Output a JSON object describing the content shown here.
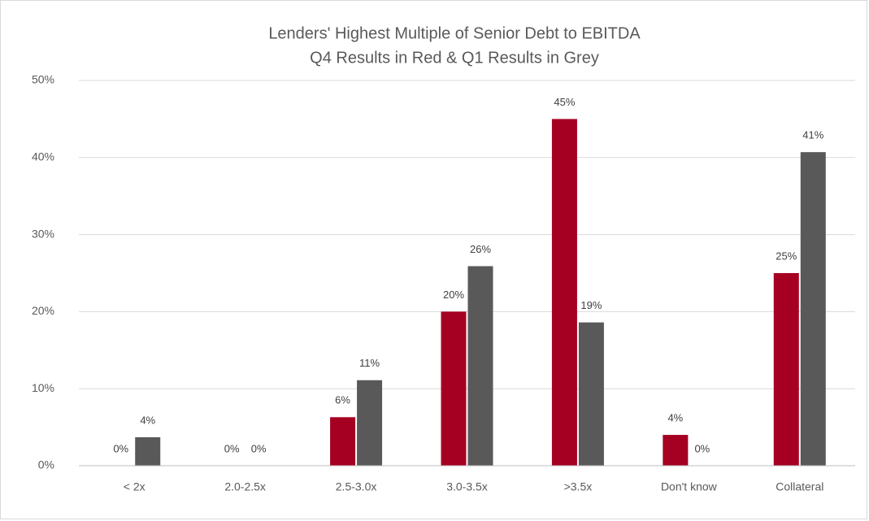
{
  "chart_data": {
    "type": "bar",
    "title": "Lenders' Highest Multiple of Senior Debt to EBITDA",
    "subtitle": "Q4 Results in Red & Q1 Results in Grey",
    "categories": [
      "< 2x",
      "2.0-2.5x",
      "2.5-3.0x",
      "3.0-3.5x",
      ">3.5x",
      "Don't know",
      "Collateral"
    ],
    "series": [
      {
        "color": "#a50021",
        "values": [
          0,
          0,
          6.3,
          20,
          45,
          4,
          25
        ],
        "value_labels": [
          "0%",
          "0%",
          "6%",
          "20%",
          "45%",
          "4%",
          "25%"
        ]
      },
      {
        "color": "#595959",
        "values": [
          3.7,
          0,
          11.1,
          25.9,
          18.6,
          0,
          40.7
        ],
        "value_labels": [
          "4%",
          "0%",
          "11%",
          "26%",
          "19%",
          "0%",
          "41%"
        ]
      }
    ],
    "ylim": [
      0,
      50
    ],
    "yticks": [
      {
        "value": 0,
        "label": "0%"
      },
      {
        "value": 10,
        "label": "10%"
      },
      {
        "value": 20,
        "label": "20%"
      },
      {
        "value": 30,
        "label": "30%"
      },
      {
        "value": 40,
        "label": "40%"
      },
      {
        "value": 50,
        "label": "50%"
      }
    ],
    "grid": true
  }
}
